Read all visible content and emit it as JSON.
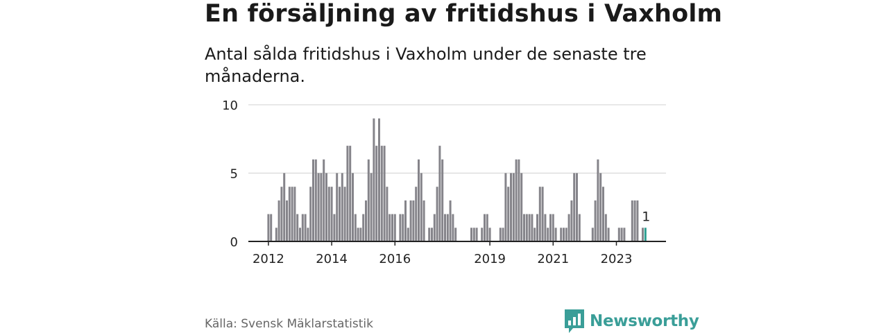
{
  "title": "En försäljning av fritidshus i Vaxholm",
  "subtitle": "Antal sålda fritidshus i Vaxholm under de senaste tre månaderna.",
  "source": "Källa: Svensk Mäklarstatistik",
  "brand": "Newsworthy",
  "colors": {
    "bar": "#85848a",
    "highlight": "#2a9d8f",
    "brand": "#3a9e98",
    "grid": "#d0d0d0",
    "axis": "#222222"
  },
  "chart_data": {
    "type": "bar",
    "title": "En försäljning av fritidshus i Vaxholm",
    "xlabel": "",
    "ylabel": "",
    "ylim": [
      0,
      10
    ],
    "yticks": [
      0,
      5,
      10
    ],
    "xticks": [
      "2012",
      "2014",
      "2016",
      "2019",
      "2021",
      "2023"
    ],
    "x_start": "2012-01",
    "frequency": "monthly",
    "highlight_label": "1",
    "values": [
      2,
      2,
      0,
      1,
      3,
      4,
      5,
      3,
      4,
      4,
      4,
      2,
      1,
      2,
      2,
      1,
      4,
      6,
      6,
      5,
      5,
      6,
      5,
      4,
      4,
      2,
      5,
      4,
      5,
      4,
      7,
      7,
      5,
      2,
      1,
      1,
      2,
      3,
      6,
      5,
      9,
      7,
      9,
      7,
      7,
      4,
      2,
      2,
      2,
      0,
      2,
      2,
      3,
      1,
      3,
      3,
      4,
      6,
      5,
      3,
      0,
      1,
      1,
      2,
      4,
      7,
      6,
      2,
      2,
      3,
      2,
      1,
      0,
      0,
      0,
      0,
      0,
      1,
      1,
      1,
      0,
      1,
      2,
      2,
      1,
      0,
      0,
      0,
      1,
      1,
      5,
      4,
      5,
      5,
      6,
      6,
      5,
      2,
      2,
      2,
      2,
      1,
      2,
      4,
      4,
      2,
      1,
      2,
      2,
      1,
      0,
      1,
      1,
      1,
      2,
      3,
      5,
      5,
      2,
      0,
      0,
      0,
      0,
      1,
      3,
      6,
      5,
      4,
      2,
      1,
      0,
      0,
      0,
      1,
      1,
      1,
      0,
      0,
      3,
      3,
      3,
      0,
      1,
      1
    ],
    "highlight": [
      false,
      false,
      false,
      false,
      false,
      false,
      false,
      false,
      false,
      false,
      false,
      false,
      false,
      false,
      false,
      false,
      false,
      false,
      false,
      false,
      false,
      false,
      false,
      false,
      false,
      false,
      false,
      false,
      false,
      false,
      false,
      false,
      false,
      false,
      false,
      false,
      false,
      false,
      false,
      false,
      false,
      false,
      false,
      false,
      false,
      false,
      false,
      false,
      false,
      false,
      false,
      false,
      false,
      false,
      false,
      false,
      false,
      false,
      false,
      false,
      false,
      false,
      false,
      false,
      false,
      false,
      false,
      false,
      false,
      false,
      false,
      false,
      false,
      false,
      false,
      false,
      false,
      false,
      false,
      false,
      false,
      false,
      false,
      false,
      false,
      false,
      false,
      false,
      false,
      false,
      false,
      false,
      false,
      false,
      false,
      false,
      false,
      false,
      false,
      false,
      false,
      false,
      false,
      false,
      false,
      false,
      false,
      false,
      false,
      false,
      false,
      false,
      false,
      false,
      false,
      false,
      false,
      false,
      false,
      false,
      false,
      false,
      false,
      false,
      false,
      false,
      false,
      false,
      false,
      false,
      false,
      false,
      false,
      false,
      false,
      false,
      false,
      false,
      false,
      false,
      false,
      false,
      false,
      true
    ]
  }
}
